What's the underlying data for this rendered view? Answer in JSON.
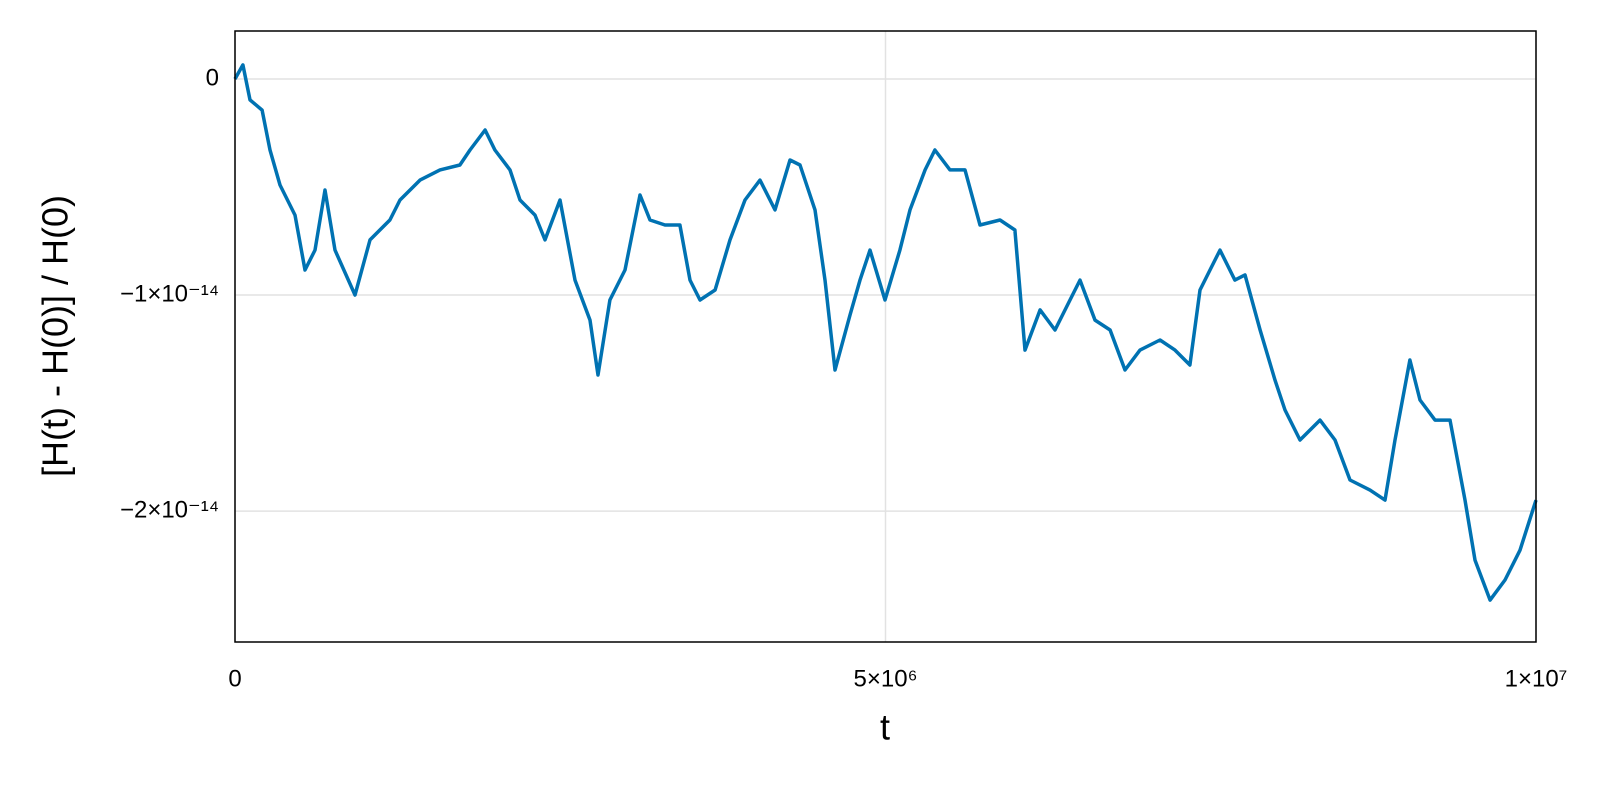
{
  "chart_data": {
    "type": "line",
    "xlabel": "t",
    "ylabel": "[H(t) - H(0)] / H(0)",
    "xlim": [
      0,
      10000000
    ],
    "ylim": [
      2.22e-15,
      -2.606e-14
    ],
    "xticks": [
      0,
      {
        "value": 5000000,
        "label": "5×10⁶"
      },
      {
        "value": 10000000,
        "label": "1×10⁷"
      }
    ],
    "yticks": [
      0,
      {
        "value": -1e-14,
        "label": "−1×10⁻¹⁴"
      },
      {
        "value": -2e-14,
        "label": "−2×10⁻¹⁴"
      }
    ],
    "grid": true,
    "series": [
      {
        "color": "#0072b2",
        "x": [
          0,
          61000,
          115000,
          208000,
          269000,
          346000,
          461000,
          538000,
          615000,
          692000,
          769000,
          922000,
          1038000,
          1191000,
          1268000,
          1422000,
          1576000,
          1729000,
          1806000,
          1922000,
          1998000,
          2114000,
          2191000,
          2306000,
          2383000,
          2498000,
          2613000,
          2729000,
          2790000,
          2882000,
          2998000,
          3113000,
          3190000,
          3305000,
          3420000,
          3497000,
          3574000,
          3690000,
          3805000,
          3920000,
          4035000,
          4151000,
          4266000,
          4343000,
          4458000,
          4535000,
          4612000,
          4727000,
          4804000,
          4881000,
          4996000,
          5111000,
          5188000,
          5304000,
          5380000,
          5496000,
          5611000,
          5726000,
          5880000,
          5995000,
          6072000,
          6188000,
          6303000,
          6418000,
          6495000,
          6610000,
          6726000,
          6841000,
          6956000,
          7110000,
          7225000,
          7340000,
          7417000,
          7494000,
          7571000,
          7686000,
          7763000,
          7879000,
          7994000,
          8071000,
          8186000,
          8340000,
          8455000,
          8570000,
          8724000,
          8839000,
          8916000,
          9031000,
          9108000,
          9224000,
          9339000,
          9454000,
          9531000,
          9647000,
          9762000,
          9877000,
          10000000
        ],
        "values": [
          0,
          6.5e-16,
          -9.7e-16,
          -1.44e-15,
          -3.29e-15,
          -4.91e-15,
          -6.3e-15,
          -8.84e-15,
          -7.92e-15,
          -5.14e-15,
          -7.92e-15,
          -1e-14,
          -7.45e-15,
          -6.53e-15,
          -5.6e-15,
          -4.68e-15,
          -4.21e-15,
          -3.98e-15,
          -3.29e-15,
          -2.36e-15,
          -3.29e-15,
          -4.21e-15,
          -5.6e-15,
          -6.3e-15,
          -7.45e-15,
          -5.6e-15,
          -9.31e-15,
          -1.116e-14,
          -1.37e-14,
          -1.023e-14,
          -8.84e-15,
          -5.37e-15,
          -6.53e-15,
          -6.76e-15,
          -6.76e-15,
          -9.31e-15,
          -1.023e-14,
          -9.77e-15,
          -7.45e-15,
          -5.6e-15,
          -4.68e-15,
          -6.06e-15,
          -3.75e-15,
          -3.98e-15,
          -6.06e-15,
          -9.31e-15,
          -1.347e-14,
          -1.093e-14,
          -9.31e-15,
          -7.92e-15,
          -1.023e-14,
          -7.92e-15,
          -6.06e-15,
          -4.21e-15,
          -3.29e-15,
          -4.21e-15,
          -4.21e-15,
          -6.76e-15,
          -6.53e-15,
          -6.99e-15,
          -1.255e-14,
          -1.069e-14,
          -1.162e-14,
          -1.023e-14,
          -9.31e-15,
          -1.116e-14,
          -1.162e-14,
          -1.347e-14,
          -1.255e-14,
          -1.208e-14,
          -1.255e-14,
          -1.324e-14,
          -9.77e-15,
          -8.84e-15,
          -7.92e-15,
          -9.31e-15,
          -9.07e-15,
          -1.162e-14,
          -1.394e-14,
          -1.532e-14,
          -1.671e-14,
          -1.579e-14,
          -1.671e-14,
          -1.856e-14,
          -1.903e-14,
          -1.949e-14,
          -1.671e-14,
          -1.301e-14,
          -1.486e-14,
          -1.579e-14,
          -1.579e-14,
          -1.949e-14,
          -2.227e-14,
          -2.412e-14,
          -2.319e-14,
          -2.181e-14,
          -1.949e-14
        ]
      }
    ]
  }
}
